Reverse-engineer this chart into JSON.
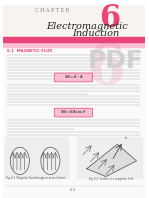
{
  "chapter_label": "C H A P T E R",
  "chapter_number": "6",
  "title_line1": "Electromagnetic",
  "title_line2": "Induction",
  "section_label": "6.1  MAGNETIC FLUX",
  "bg_color": "#ffffff",
  "pink_bar_color": "#e8457a",
  "pink_light_color": "#f9c0d5",
  "chapter_num_color": "#e8457a",
  "header_bg": "#f7f3ee",
  "text_color": "#222222",
  "pink_text_color": "#e8457a",
  "body_text_color": "#333333",
  "pdf_label_color": "#cccccc",
  "watermark_color": "#e8457a"
}
